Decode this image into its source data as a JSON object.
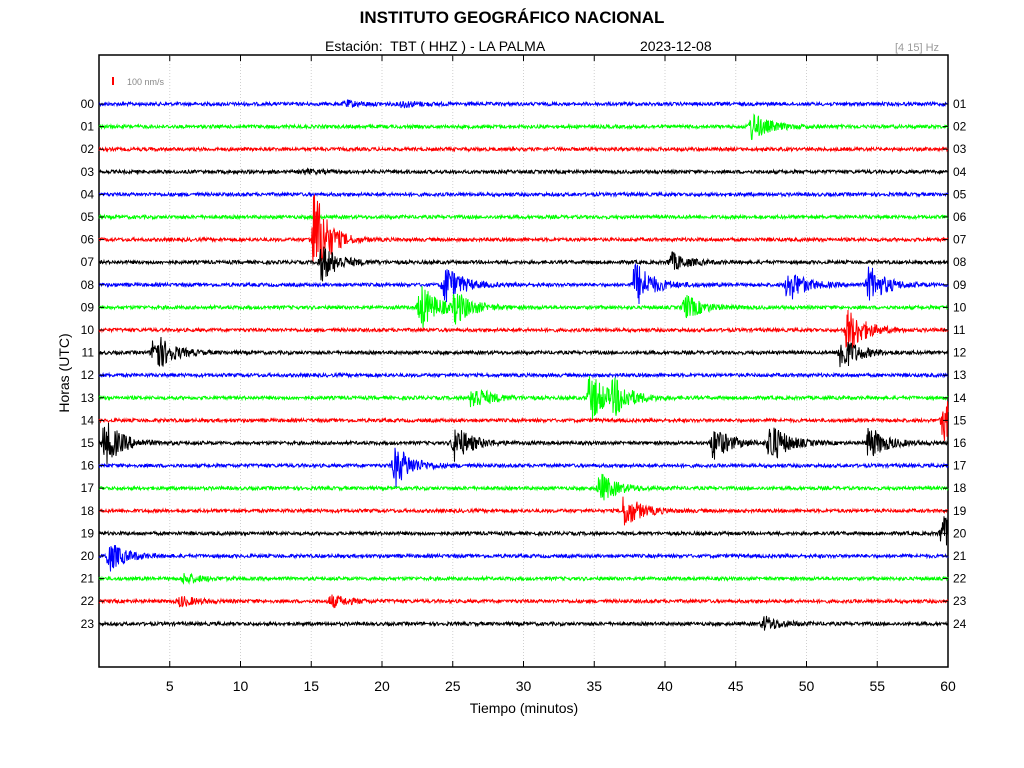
{
  "header": {
    "title": "INSTITUTO GEOGRÁFICO NACIONAL",
    "station": "Estación:  TBT ( HHZ ) - LA PALMA",
    "date": "2023-12-08",
    "band": "[4 15] Hz"
  },
  "chart_data": {
    "type": "line",
    "xlabel": "Tiempo (minutos)",
    "ylabel": "Horas (UTC)",
    "xlim": [
      0,
      60
    ],
    "x_ticks": [
      5,
      10,
      15,
      20,
      25,
      30,
      35,
      40,
      45,
      50,
      55,
      60
    ],
    "scale_label": "100 nm/s",
    "scale_color": "#ff0000",
    "left_labels": [
      "00",
      "01",
      "02",
      "03",
      "04",
      "05",
      "06",
      "07",
      "08",
      "09",
      "10",
      "11",
      "12",
      "13",
      "14",
      "15",
      "16",
      "17",
      "18",
      "19",
      "20",
      "21",
      "22",
      "23"
    ],
    "right_labels": [
      "01",
      "02",
      "03",
      "04",
      "05",
      "06",
      "07",
      "08",
      "09",
      "10",
      "11",
      "12",
      "13",
      "14",
      "15",
      "16",
      "17",
      "18",
      "19",
      "20",
      "21",
      "22",
      "23",
      "24"
    ],
    "trace_colors": [
      "#0000ff",
      "#00ff00",
      "#ff0000",
      "#000000"
    ],
    "grid": true,
    "events": [
      {
        "row": 0,
        "minute": 17.5,
        "amp": 3
      },
      {
        "row": 0,
        "minute": 21.5,
        "amp": 3
      },
      {
        "row": 1,
        "minute": 46.2,
        "amp": 14
      },
      {
        "row": 3,
        "minute": 14.5,
        "amp": 2
      },
      {
        "row": 6,
        "minute": 15.3,
        "amp": 50
      },
      {
        "row": 7,
        "minute": 15.8,
        "amp": 18
      },
      {
        "row": 7,
        "minute": 40.5,
        "amp": 9
      },
      {
        "row": 8,
        "minute": 24.5,
        "amp": 20
      },
      {
        "row": 8,
        "minute": 38.0,
        "amp": 22
      },
      {
        "row": 8,
        "minute": 48.8,
        "amp": 16
      },
      {
        "row": 8,
        "minute": 54.5,
        "amp": 18
      },
      {
        "row": 9,
        "minute": 22.8,
        "amp": 22
      },
      {
        "row": 9,
        "minute": 25.3,
        "amp": 14
      },
      {
        "row": 9,
        "minute": 41.5,
        "amp": 12
      },
      {
        "row": 10,
        "minute": 53.0,
        "amp": 22
      },
      {
        "row": 11,
        "minute": 4.0,
        "amp": 20
      },
      {
        "row": 11,
        "minute": 52.5,
        "amp": 18
      },
      {
        "row": 13,
        "minute": 26.5,
        "amp": 12
      },
      {
        "row": 13,
        "minute": 34.8,
        "amp": 24
      },
      {
        "row": 13,
        "minute": 36.5,
        "amp": 14
      },
      {
        "row": 14,
        "minute": 59.8,
        "amp": 22
      },
      {
        "row": 15,
        "minute": 0.5,
        "amp": 22
      },
      {
        "row": 15,
        "minute": 25.2,
        "amp": 18
      },
      {
        "row": 15,
        "minute": 43.5,
        "amp": 16
      },
      {
        "row": 15,
        "minute": 47.5,
        "amp": 20
      },
      {
        "row": 15,
        "minute": 54.5,
        "amp": 16
      },
      {
        "row": 16,
        "minute": 21.0,
        "amp": 20
      },
      {
        "row": 17,
        "minute": 35.5,
        "amp": 14
      },
      {
        "row": 18,
        "minute": 37.2,
        "amp": 16
      },
      {
        "row": 19,
        "minute": 59.7,
        "amp": 16
      },
      {
        "row": 20,
        "minute": 0.8,
        "amp": 14
      },
      {
        "row": 21,
        "minute": 6.1,
        "amp": 5
      },
      {
        "row": 22,
        "minute": 5.8,
        "amp": 5
      },
      {
        "row": 22,
        "minute": 16.5,
        "amp": 6
      },
      {
        "row": 23,
        "minute": 47.1,
        "amp": 7
      }
    ]
  }
}
